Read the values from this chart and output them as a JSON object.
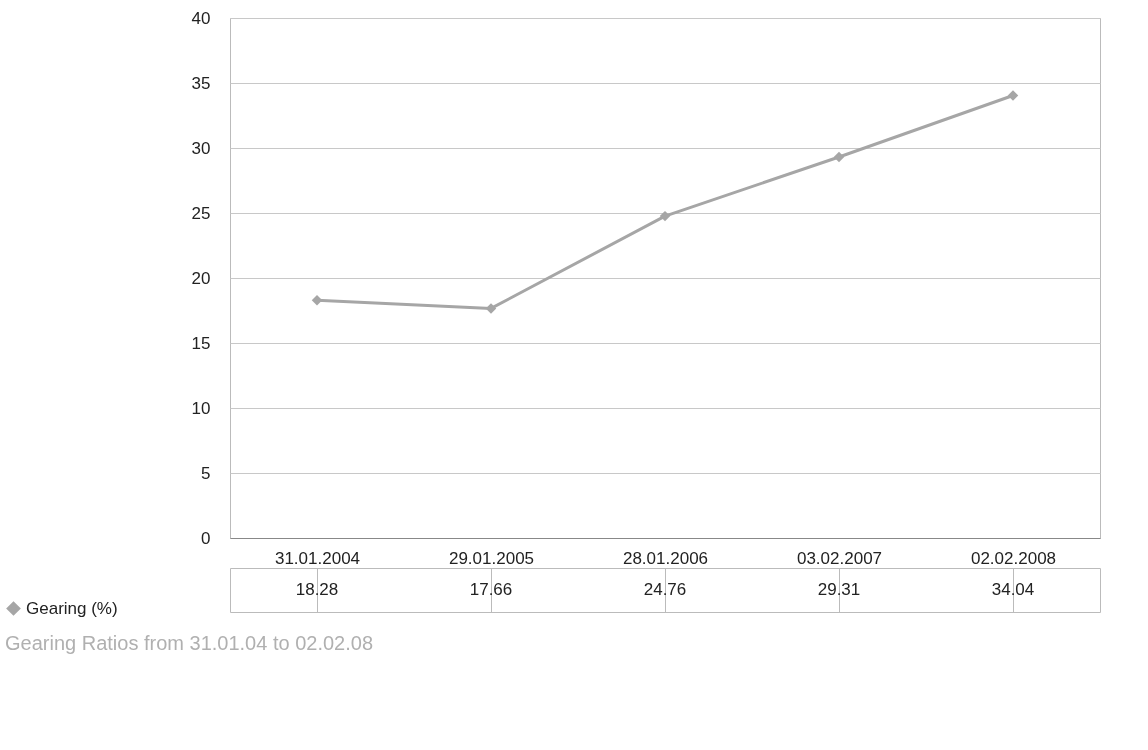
{
  "chart_data": {
    "type": "line",
    "title": "Gearing Ratios from 31.01.04 to 02.02.08",
    "categories": [
      "31.01.2004",
      "29.01.2005",
      "28.01.2006",
      "03.02.2007",
      "02.02.2008"
    ],
    "series": [
      {
        "name": "Gearing (%)",
        "color": "#a6a6a6",
        "values": [
          18.28,
          17.66,
          24.76,
          29.31,
          34.04
        ]
      }
    ],
    "ylim": [
      0,
      40
    ],
    "yticks": [
      0,
      5,
      10,
      15,
      20,
      25,
      30,
      35,
      40
    ],
    "grid": "y",
    "legend": "bottom left",
    "marker": "diamond",
    "line_style": "solid",
    "value_labels": [
      "18.28",
      "17.66",
      "24.76",
      "29.31",
      "34.04"
    ]
  }
}
